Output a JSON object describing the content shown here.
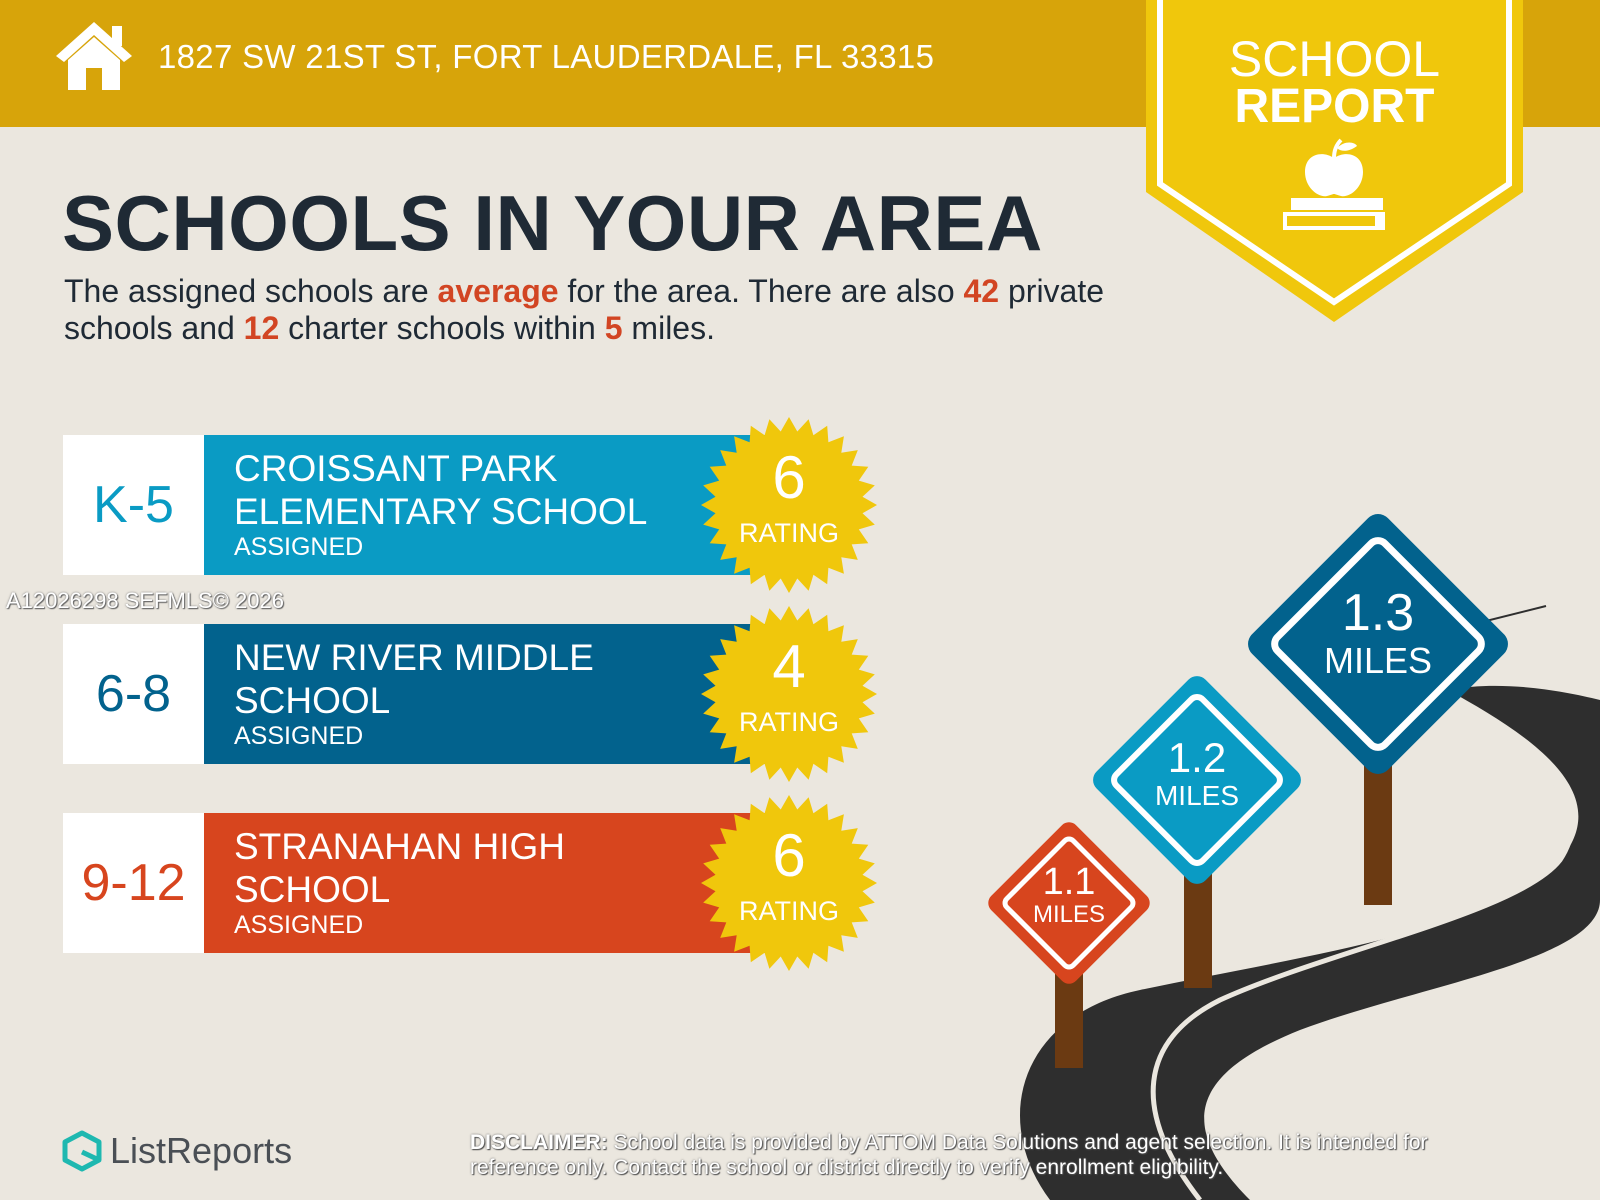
{
  "header": {
    "address": "1827 SW 21ST ST, FORT LAUDERDALE, FL 33315",
    "icon": "house-icon",
    "bar_color": "#d7a40a"
  },
  "badge": {
    "line1": "SCHOOL",
    "line2": "REPORT",
    "icon": "apple-on-books-icon",
    "color": "#f0c70c"
  },
  "title": "SCHOOLS IN YOUR AREA",
  "summary": {
    "part1": "The assigned schools are ",
    "quality": "average",
    "part2": " for the area. There are also ",
    "private_count": "42",
    "part3": " private schools and ",
    "charter_count": "12",
    "part4": " charter schools within ",
    "radius": "5",
    "part5": " miles."
  },
  "schools": [
    {
      "grades": "K-5",
      "name": "CROISSANT PARK ELEMENTARY SCHOOL",
      "status": "ASSIGNED",
      "rating": "6",
      "rating_label": "RATING",
      "color": "#0a9bc4",
      "grade_color": "#0a9bc4"
    },
    {
      "grades": "6-8",
      "name": "NEW RIVER MIDDLE SCHOOL",
      "status": "ASSIGNED",
      "rating": "4",
      "rating_label": "RATING",
      "color": "#02628d",
      "grade_color": "#02628d"
    },
    {
      "grades": "9-12",
      "name": "STRANAHAN HIGH SCHOOL",
      "status": "ASSIGNED",
      "rating": "6",
      "rating_label": "RATING",
      "color": "#d7451e",
      "grade_color": "#d7451e"
    }
  ],
  "watermark": "A12026298  SEFMLS© 2026",
  "distances": [
    {
      "value": "1.1",
      "unit": "MILES",
      "color": "#d7451e"
    },
    {
      "value": "1.2",
      "unit": "MILES",
      "color": "#0a9bc4"
    },
    {
      "value": "1.3",
      "unit": "MILES",
      "color": "#02628d"
    }
  ],
  "footer": {
    "logo": "ListReports",
    "logo_icon": "listreports-logo-icon",
    "disclaimer_label": "DISCLAIMER:",
    "disclaimer_text": " School data is provided by ATTOM Data Solutions and agent selection. It is intended for reference only. Contact the school or district directly to verify enrollment eligibility."
  },
  "colors": {
    "accent": "#d24523",
    "seal": "#f0c70c",
    "background": "#ebe7df",
    "road": "#2e2e2e",
    "post": "#6b3a12"
  }
}
